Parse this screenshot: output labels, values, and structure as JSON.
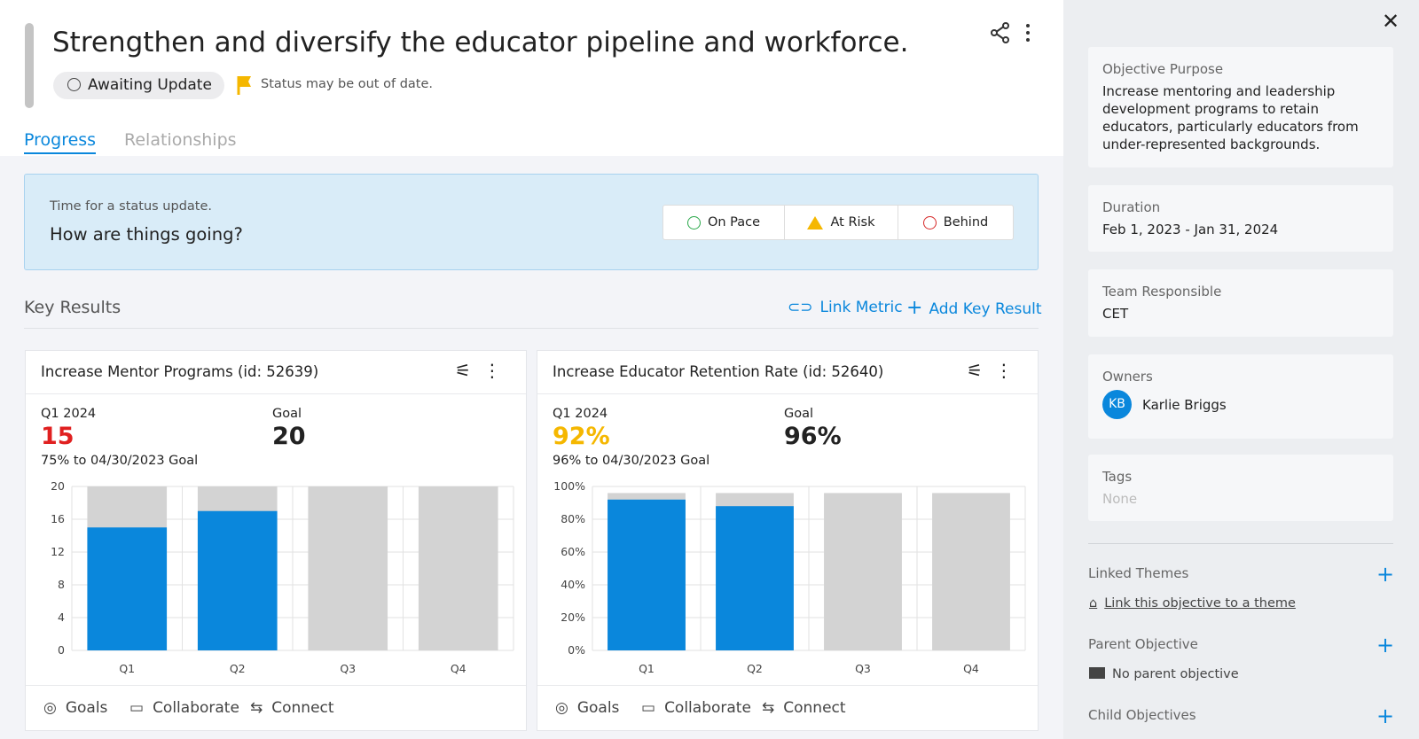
{
  "header": {
    "title": "Strengthen and diversify the educator pipeline and workforce.",
    "status": "Awaiting Update",
    "warning": "Status may be out of date."
  },
  "tabs": [
    "Progress",
    "Relationships"
  ],
  "status_prompt": {
    "caption": "Time for a status update.",
    "question": "How are things going?",
    "options": [
      "On Pace",
      "At Risk",
      "Behind"
    ]
  },
  "key_results": {
    "title": "Key Results",
    "actions": [
      "Link Metric",
      "Add Key Result"
    ]
  },
  "cards": [
    {
      "title": "Increase Mentor Programs (id: 52639)",
      "period": "Q1 2024",
      "current": "15",
      "goal_label": "Goal",
      "goal": "20",
      "progress_note": "75% to 04/30/2023 Goal",
      "chart_data": {
        "type": "bar",
        "categories": [
          "Q1",
          "Q2",
          "Q3",
          "Q4"
        ],
        "series": [
          {
            "color": "#d3d3d3",
            "values": [
              20,
              20,
              20,
              20
            ]
          },
          {
            "color": "#0a87dc",
            "values": [
              15,
              17,
              null,
              null
            ]
          }
        ],
        "ylim": [
          0,
          20
        ],
        "yticks": [
          0,
          4,
          8,
          12,
          16,
          20
        ],
        "grid": true
      },
      "footer": [
        "Goals",
        "Collaborate",
        "Connect"
      ]
    },
    {
      "title": "Increase Educator Retention Rate (id: 52640)",
      "period": "Q1 2024",
      "current": "92%",
      "goal_label": "Goal",
      "goal": "96%",
      "progress_note": "96% to 04/30/2023 Goal",
      "chart_data": {
        "type": "bar",
        "categories": [
          "Q1",
          "Q2",
          "Q3",
          "Q4"
        ],
        "series": [
          {
            "color": "#d3d3d3",
            "values": [
              96,
              96,
              96,
              96
            ]
          },
          {
            "color": "#0a87dc",
            "values": [
              92,
              88,
              null,
              null
            ]
          }
        ],
        "ylim": [
          0,
          100
        ],
        "yticks": [
          {
            "value": 0,
            "label": "0%"
          },
          {
            "value": 20,
            "label": "20%"
          },
          {
            "value": 40,
            "label": "40%"
          },
          {
            "value": 60,
            "label": "60%"
          },
          {
            "value": 80,
            "label": "80%"
          },
          {
            "value": 100,
            "label": "100%"
          }
        ],
        "grid": true
      },
      "footer": [
        "Goals",
        "Collaborate",
        "Connect"
      ]
    }
  ],
  "sidebar": {
    "fields": [
      {
        "label": "Objective Purpose",
        "value": "Increase mentoring and leadership development programs to retain educators, particularly educators from under-represented backgrounds."
      },
      {
        "label": "Duration",
        "value": "Feb 1, 2023 - Jan 31, 2024"
      },
      {
        "label": "Team Responsible",
        "value": "CET"
      },
      {
        "label": "Owners",
        "initials": "KB",
        "value": "Karlie Briggs"
      },
      {
        "label": "Tags",
        "value": "None"
      }
    ],
    "sections": [
      {
        "title": "Linked Themes",
        "note": "Link this objective to a theme"
      },
      {
        "title": "Parent Objective",
        "note": "No parent objective"
      },
      {
        "title": "Child Objectives"
      }
    ]
  }
}
